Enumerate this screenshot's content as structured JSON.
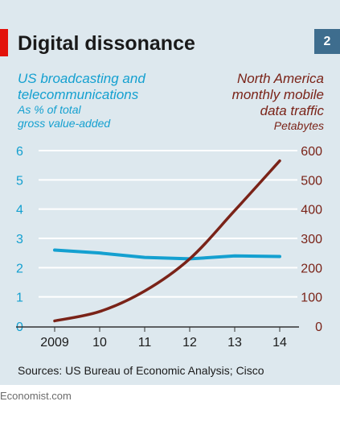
{
  "title": "Digital dissonance",
  "chart_number": "2",
  "source": "Sources: US Bureau of Economic Analysis; Cisco",
  "brand": "Economist.com",
  "colors": {
    "left_series": "#14a0d0",
    "right_series": "#7a2318",
    "accent": "#e3120b",
    "badge": "#3e6d8e",
    "panel": "#dde8ee"
  },
  "left_legend": [
    "US broadcasting and",
    "telecommunications",
    "As % of total",
    "gross value-added"
  ],
  "right_legend": [
    "North America",
    "monthly mobile",
    "data traffic",
    "Petabytes"
  ],
  "chart_data": {
    "type": "line",
    "title": "Digital dissonance",
    "categories": [
      "2009",
      "10",
      "11",
      "12",
      "13",
      "14"
    ],
    "x": [
      2009,
      2010,
      2011,
      2012,
      2013,
      2014
    ],
    "y_left": {
      "label": "US broadcasting and telecommunications, As % of total gross value-added",
      "ylim": [
        0,
        6
      ],
      "ticks": [
        0,
        1,
        2,
        3,
        4,
        5,
        6
      ]
    },
    "y_right": {
      "label": "North America monthly mobile data traffic, Petabytes",
      "ylim": [
        0,
        600
      ],
      "ticks": [
        0,
        100,
        200,
        300,
        400,
        500,
        600
      ]
    },
    "series": [
      {
        "name": "US broadcasting and telecommunications",
        "axis": "left",
        "color": "#14a0d0",
        "values": [
          2.6,
          2.5,
          2.35,
          2.3,
          2.4,
          2.38
        ]
      },
      {
        "name": "North America monthly mobile data traffic",
        "axis": "right",
        "color": "#7a2318",
        "values": [
          18,
          50,
          120,
          230,
          395,
          565
        ]
      }
    ],
    "grid": "horizontal",
    "legend": "top"
  }
}
